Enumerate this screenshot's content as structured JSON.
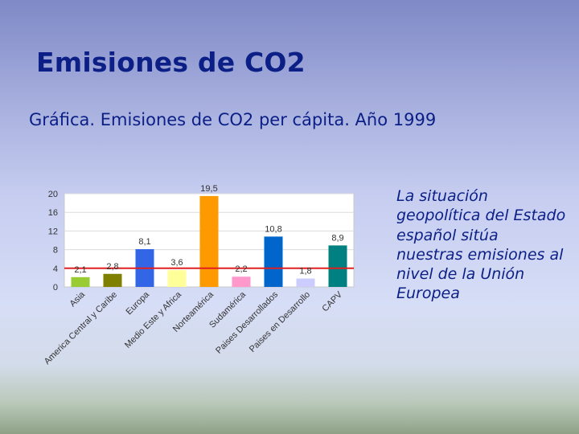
{
  "slide": {
    "title": "Emisiones de CO2",
    "subtitle": "Gráfica. Emisiones de CO2 per cápita. Año 1999",
    "note": "La situación geopolítica del Estado español sitúa nuestras emisiones al nivel de la Unión Europea"
  },
  "chart_data": {
    "type": "bar",
    "title": "",
    "xlabel": "",
    "ylabel": "",
    "ylim": [
      0,
      20
    ],
    "yticks": [
      0,
      4,
      8,
      12,
      16,
      20
    ],
    "grid": true,
    "categories": [
      "Asia",
      "America Central y Caribe",
      "Europa",
      "Medio Este y Africa",
      "Norteamérica",
      "Sudamérica",
      "Paises Desarrollados",
      "Paises en Desarrollo",
      "CAPV"
    ],
    "values": [
      2.1,
      2.8,
      8.1,
      3.6,
      19.5,
      2.2,
      10.8,
      1.8,
      8.9
    ],
    "value_labels": [
      "2,1",
      "2,8",
      "8,1",
      "3,6",
      "19,5",
      "2,2",
      "10,8",
      "1,8",
      "8,9"
    ],
    "bar_colors": [
      "#99cc33",
      "#808000",
      "#3366e6",
      "#ffff99",
      "#ff9900",
      "#ff99cc",
      "#0066cc",
      "#ccccff",
      "#008080"
    ],
    "reference_line": {
      "value": 4,
      "color": "#e02020"
    }
  }
}
